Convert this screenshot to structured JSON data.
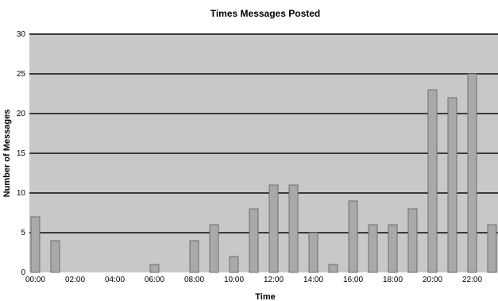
{
  "chart_data": {
    "type": "bar",
    "title": "Times Messages Posted",
    "xlabel": "Time",
    "ylabel": "Number of Messages",
    "ylim": [
      0,
      30
    ],
    "yticks": [
      0,
      5,
      10,
      15,
      20,
      25,
      30
    ],
    "grid": true,
    "legend": "none",
    "categories": [
      "00:00",
      "01:00",
      "02:00",
      "03:00",
      "04:00",
      "05:00",
      "06:00",
      "07:00",
      "08:00",
      "09:00",
      "10:00",
      "11:00",
      "12:00",
      "13:00",
      "14:00",
      "15:00",
      "16:00",
      "17:00",
      "18:00",
      "19:00",
      "20:00",
      "21:00",
      "22:00",
      "23:00"
    ],
    "xtick_labels": [
      "00:00",
      "02:00",
      "04:00",
      "06:00",
      "08:00",
      "10:00",
      "12:00",
      "14:00",
      "16:00",
      "18:00",
      "20:00",
      "22:00"
    ],
    "values": [
      7,
      4,
      0,
      0,
      0,
      0,
      1,
      0,
      4,
      6,
      2,
      8,
      11,
      11,
      5,
      1,
      9,
      6,
      6,
      8,
      23,
      22,
      25,
      6
    ],
    "colors": {
      "plot_bg": "#c8c8c8",
      "bar_fill": "#a9a9a9",
      "bar_stroke": "#6e6e6e",
      "grid": "#3a3a3a"
    }
  }
}
